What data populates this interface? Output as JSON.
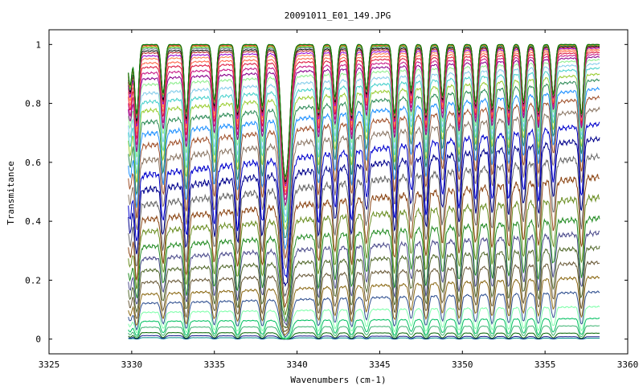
{
  "chart_data": {
    "type": "line",
    "title": "20091011_E01_149.JPG",
    "xlabel": "Wavenumbers (cm-1)",
    "ylabel": "Transmitance",
    "xlim": [
      3325,
      3360
    ],
    "ylim": [
      -0.05,
      1.05
    ],
    "x_ticks": [
      "3325",
      "3330",
      "3335",
      "3340",
      "3345",
      "3350",
      "3355",
      "3360"
    ],
    "y_ticks": [
      "0",
      "0.2",
      "0.4",
      "0.6",
      "0.8",
      "1"
    ],
    "x_range": [
      3329.8,
      3358.3
    ],
    "grid": false,
    "legend": "none",
    "absorption_lines_cm1": [
      3329.9,
      3330.3,
      3331.9,
      3333.3,
      3335.0,
      3336.4,
      3337.9,
      3339.3,
      3341.3,
      3342.3,
      3343.3,
      3344.2,
      3345.9,
      3346.9,
      3347.8,
      3348.8,
      3349.8,
      3350.8,
      3351.8,
      3352.8,
      3353.7,
      3354.6,
      3355.5,
      3357.2
    ],
    "strong_line_cm1": 3339.3,
    "series_count": 40,
    "series_left_start_values": [
      0.005,
      0.012,
      0.022,
      0.04,
      0.06,
      0.09,
      0.12,
      0.15,
      0.19,
      0.23,
      0.27,
      0.31,
      0.36,
      0.4,
      0.45,
      0.5,
      0.55,
      0.6,
      0.65,
      0.69,
      0.73,
      0.77,
      0.8,
      0.83,
      0.86,
      0.88,
      0.9,
      0.92,
      0.935,
      0.95,
      0.96,
      0.97,
      0.977,
      0.984,
      0.989,
      0.993,
      0.996,
      0.998,
      0.999,
      1.0
    ],
    "series_right_end_values": [
      0.003,
      0.008,
      0.02,
      0.045,
      0.07,
      0.11,
      0.16,
      0.21,
      0.26,
      0.31,
      0.36,
      0.41,
      0.48,
      0.55,
      0.62,
      0.68,
      0.73,
      0.78,
      0.82,
      0.85,
      0.88,
      0.9,
      0.92,
      0.935,
      0.948,
      0.958,
      0.966,
      0.973,
      0.979,
      0.984,
      0.988,
      0.991,
      0.994,
      0.996,
      0.997,
      0.998,
      0.999,
      0.9995,
      1.0,
      1.0
    ],
    "colors": [
      "#008b8b",
      "#1a1a8c",
      "#006400",
      "#3cb371",
      "#00c060",
      "#7fffaa",
      "#2f4f8f",
      "#8b6914",
      "#6b5b3a",
      "#556b2f",
      "#4b4b8b",
      "#228b22",
      "#6b8e23",
      "#8b4513",
      "#696969",
      "#00008b",
      "#0000cd",
      "#8b7765",
      "#a0522d",
      "#1e90ff",
      "#2e8b57",
      "#9acd32",
      "#48d1cc",
      "#87ceeb",
      "#90ee90",
      "#8b008b",
      "#c71585",
      "#dc143c",
      "#ff6347",
      "#ff7f50",
      "#9400d3",
      "#b22222",
      "#000000",
      "#708090",
      "#32cd32",
      "#daa520",
      "#cd5c5c",
      "#ff4500",
      "#2f4f4f",
      "#008000"
    ]
  }
}
